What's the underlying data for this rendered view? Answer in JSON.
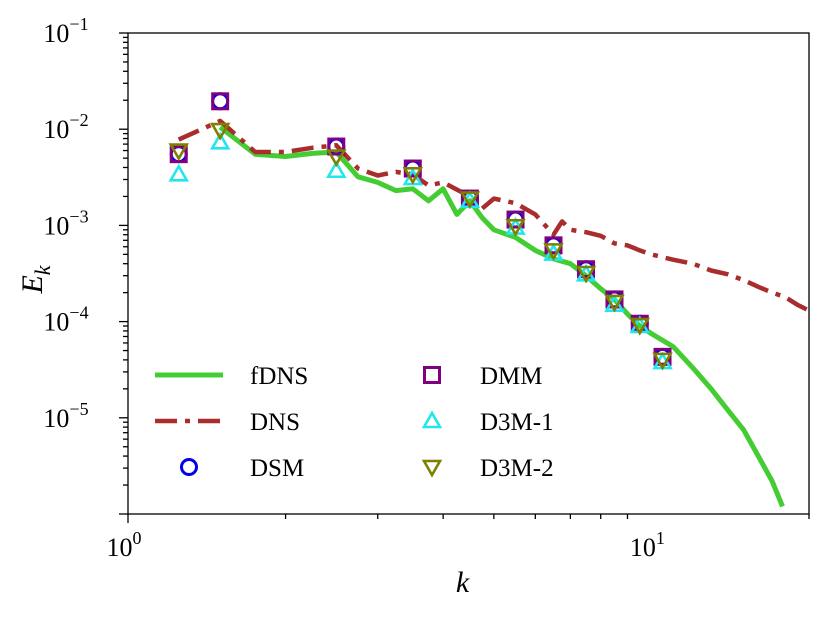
{
  "chart_data": {
    "type": "line",
    "title": "",
    "xlabel": "k",
    "ylabel": "E_k",
    "xscale": "log",
    "yscale": "log",
    "xlim": [
      1,
      20
    ],
    "ylim": [
      1e-06,
      0.1
    ],
    "grid": false,
    "legend_location": "lower-left",
    "x_ticks": [
      {
        "value": 1,
        "base": "10",
        "exp": "0"
      },
      {
        "value": 10,
        "base": "10",
        "exp": "1"
      }
    ],
    "y_ticks": [
      {
        "value": 0.1,
        "base": "10",
        "exp": "−1"
      },
      {
        "value": 0.01,
        "base": "10",
        "exp": "−2"
      },
      {
        "value": 0.001,
        "base": "10",
        "exp": "−3"
      },
      {
        "value": 0.0001,
        "base": "10",
        "exp": "−4"
      },
      {
        "value": 1e-05,
        "base": "10",
        "exp": "−5"
      }
    ],
    "series": [
      {
        "name": "fDNS",
        "kind": "line",
        "color": "#44cc33",
        "x": [
          1.5,
          1.75,
          2.0,
          2.25,
          2.5,
          2.75,
          3.0,
          3.25,
          3.5,
          3.75,
          4.0,
          4.25,
          4.5,
          4.75,
          5.0,
          5.5,
          6.0,
          6.5,
          7.0,
          7.5,
          8.0,
          8.5,
          9.0,
          9.5,
          10.0,
          11.0,
          12.0,
          13.0,
          14.0,
          15.0,
          16.0,
          17.0,
          17.8
        ],
        "y": [
          0.0105,
          0.0055,
          0.0052,
          0.0056,
          0.0058,
          0.0032,
          0.0028,
          0.0023,
          0.0024,
          0.0018,
          0.0024,
          0.0013,
          0.0018,
          0.0012,
          0.0009,
          0.00075,
          0.00055,
          0.00045,
          0.0004,
          0.0003,
          0.00022,
          0.00017,
          0.00012,
          9e-05,
          7.5e-05,
          5.5e-05,
          3.3e-05,
          2e-05,
          1.2e-05,
          7.5e-06,
          4e-06,
          2.2e-06,
          1.2e-06
        ]
      },
      {
        "name": "DNS",
        "kind": "dashdot",
        "color": "#aa2d2d",
        "x": [
          1.25,
          1.5,
          1.75,
          2.0,
          2.25,
          2.5,
          2.75,
          3.0,
          3.25,
          3.5,
          3.75,
          4.0,
          4.5,
          4.75,
          5.0,
          5.5,
          6.0,
          6.5,
          6.75,
          7.0,
          7.5,
          8.0,
          8.5,
          9.0,
          9.5,
          10.0,
          11.0,
          12.0,
          13.0,
          14.0,
          15.0,
          16.0,
          17.0,
          18.0,
          19.0,
          20.0
        ],
        "y": [
          0.0078,
          0.0122,
          0.0058,
          0.0058,
          0.0064,
          0.0068,
          0.0039,
          0.0033,
          0.0036,
          0.0034,
          0.0026,
          0.0028,
          0.002,
          0.0015,
          0.0019,
          0.0017,
          0.0013,
          0.0008,
          0.0011,
          0.0009,
          0.00085,
          0.00078,
          0.00065,
          0.00062,
          0.00055,
          0.0005,
          0.00044,
          0.0004,
          0.00034,
          0.00031,
          0.00027,
          0.00023,
          0.0002,
          0.00018,
          0.00015,
          0.00013
        ]
      },
      {
        "name": "DSM",
        "kind": "marker",
        "marker": "circle",
        "color": "#0000ee",
        "x": [
          1.25,
          1.5,
          2.5,
          3.5,
          4.5,
          5.5,
          6.5,
          7.5,
          8.5,
          9.5,
          10.5
        ],
        "y": [
          0.0055,
          0.0195,
          0.0066,
          0.0039,
          0.0019,
          0.00115,
          0.00062,
          0.00035,
          0.00017,
          9.5e-05,
          4.3e-05
        ]
      },
      {
        "name": "DMM",
        "kind": "marker",
        "marker": "square",
        "color": "#800080",
        "x": [
          1.25,
          1.5,
          2.5,
          3.5,
          4.5,
          5.5,
          6.5,
          7.5,
          8.5,
          9.5,
          10.5
        ],
        "y": [
          0.0055,
          0.0195,
          0.0066,
          0.0039,
          0.0019,
          0.00115,
          0.00062,
          0.00035,
          0.00017,
          9.5e-05,
          4.3e-05
        ]
      },
      {
        "name": "D3M-1",
        "kind": "marker",
        "marker": "triangle-up",
        "color": "#22e6ee",
        "x": [
          1.25,
          1.5,
          2.5,
          3.5,
          4.5,
          5.5,
          6.5,
          7.5,
          8.5,
          9.5,
          10.5
        ],
        "y": [
          0.0034,
          0.0073,
          0.0037,
          0.0031,
          0.0018,
          0.00095,
          0.00051,
          0.00031,
          0.00015,
          9e-05,
          3.8e-05
        ]
      },
      {
        "name": "D3M-2",
        "kind": "marker",
        "marker": "triangle-down",
        "color": "#808000",
        "x": [
          1.25,
          1.5,
          2.5,
          3.5,
          4.5,
          5.5,
          6.5,
          7.5,
          8.5,
          9.5,
          10.5
        ],
        "y": [
          0.006,
          0.0098,
          0.0052,
          0.0034,
          0.0019,
          0.00098,
          0.00055,
          0.00032,
          0.00016,
          9.2e-05,
          4e-05
        ]
      }
    ],
    "legend_columns": [
      [
        "fDNS",
        "DNS",
        "DSM"
      ],
      [
        "DMM",
        "D3M-1",
        "D3M-2"
      ]
    ]
  }
}
